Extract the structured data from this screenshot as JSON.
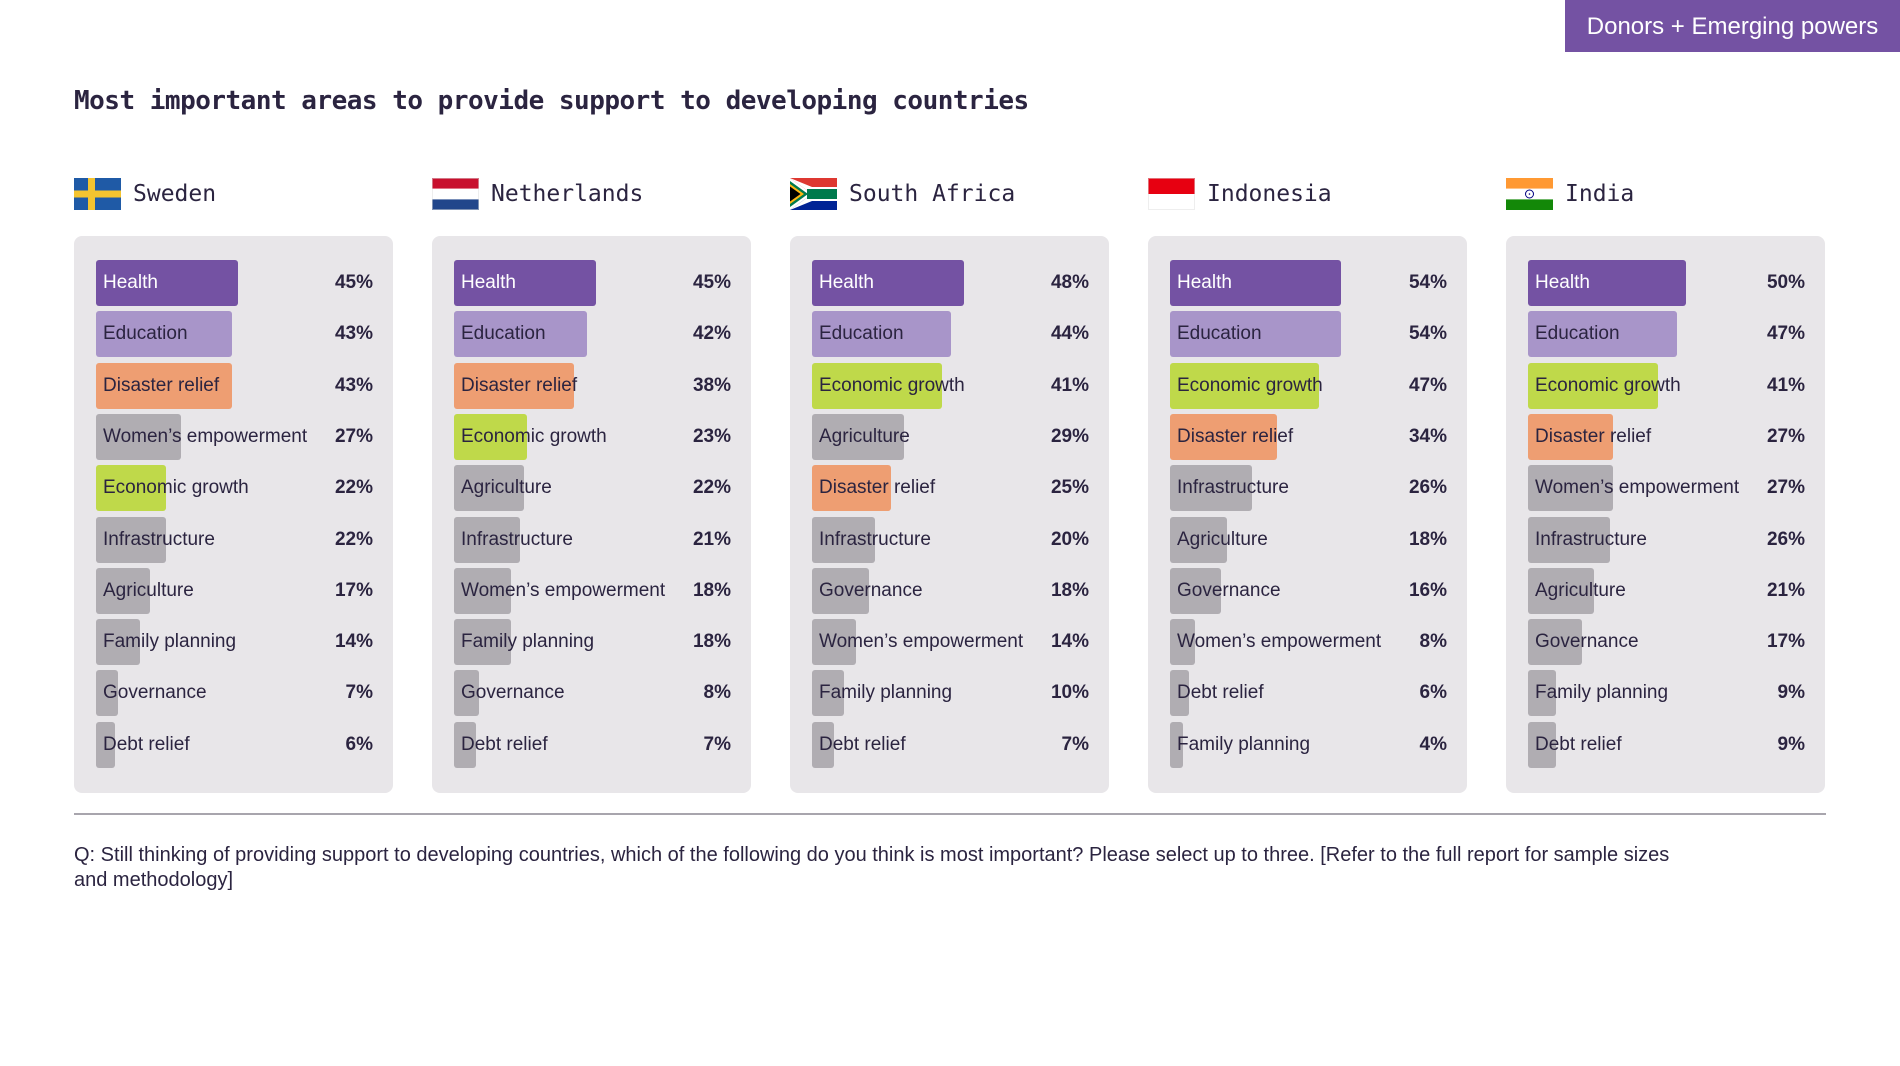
{
  "badge": "Donors + Emerging powers",
  "title": "Most important areas to provide support to developing countries",
  "question": "Q: Still thinking of providing support to developing countries, which of the following do you think is most important? Please select up to three. [Refer to the full report for sample sizes and methodology]",
  "colors": {
    "Health": "#7452a3",
    "Education": "#a895c9",
    "Disaster relief": "#ee9e72",
    "Economic growth": "#bfd94a",
    "other": "#b0adb2"
  },
  "chart_data": [
    {
      "type": "bar",
      "orientation": "horizontal",
      "title": "Sweden",
      "flag": "sweden-flag",
      "xlim": [
        0,
        100
      ],
      "categories": [
        "Health",
        "Education",
        "Disaster relief",
        "Women’s empowerment",
        "Economic growth",
        "Infrastructure",
        "Agriculture",
        "Family planning",
        "Governance",
        "Debt relief"
      ],
      "values": [
        45,
        43,
        43,
        27,
        22,
        22,
        17,
        14,
        7,
        6
      ],
      "value_labels": [
        "45%",
        "43%",
        "43%",
        "27%",
        "22%",
        "22%",
        "17%",
        "14%",
        "7%",
        "6%"
      ]
    },
    {
      "type": "bar",
      "orientation": "horizontal",
      "title": "Netherlands",
      "flag": "netherlands-flag",
      "xlim": [
        0,
        100
      ],
      "categories": [
        "Health",
        "Education",
        "Disaster relief",
        "Economic growth",
        "Agriculture",
        "Infrastructure",
        "Women’s empowerment",
        "Family planning",
        "Governance",
        "Debt relief"
      ],
      "values": [
        45,
        42,
        38,
        23,
        22,
        21,
        18,
        18,
        8,
        7
      ],
      "value_labels": [
        "45%",
        "42%",
        "38%",
        "23%",
        "22%",
        "21%",
        "18%",
        "18%",
        "8%",
        "7%"
      ]
    },
    {
      "type": "bar",
      "orientation": "horizontal",
      "title": "South Africa",
      "flag": "south-africa-flag",
      "xlim": [
        0,
        100
      ],
      "categories": [
        "Health",
        "Education",
        "Economic growth",
        "Agriculture",
        "Disaster relief",
        "Infrastructure",
        "Governance",
        "Women’s empowerment",
        "Family planning",
        "Debt relief"
      ],
      "values": [
        48,
        44,
        41,
        29,
        25,
        20,
        18,
        14,
        10,
        7
      ],
      "value_labels": [
        "48%",
        "44%",
        "41%",
        "29%",
        "25%",
        "20%",
        "18%",
        "14%",
        "10%",
        "7%"
      ]
    },
    {
      "type": "bar",
      "orientation": "horizontal",
      "title": "Indonesia",
      "flag": "indonesia-flag",
      "xlim": [
        0,
        100
      ],
      "categories": [
        "Health",
        "Education",
        "Economic growth",
        "Disaster relief",
        "Infrastructure",
        "Agriculture",
        "Governance",
        "Women’s empowerment",
        "Debt relief",
        "Family planning"
      ],
      "values": [
        54,
        54,
        47,
        34,
        26,
        18,
        16,
        8,
        6,
        4
      ],
      "value_labels": [
        "54%",
        "54%",
        "47%",
        "34%",
        "26%",
        "18%",
        "16%",
        "8%",
        "6%",
        "4%"
      ]
    },
    {
      "type": "bar",
      "orientation": "horizontal",
      "title": "India",
      "flag": "india-flag",
      "xlim": [
        0,
        100
      ],
      "categories": [
        "Health",
        "Education",
        "Economic growth",
        "Disaster relief",
        "Women’s empowerment",
        "Infrastructure",
        "Agriculture",
        "Governance",
        "Family planning",
        "Debt relief"
      ],
      "values": [
        50,
        47,
        41,
        27,
        27,
        26,
        21,
        17,
        9,
        9
      ],
      "value_labels": [
        "50%",
        "47%",
        "41%",
        "27%",
        "27%",
        "26%",
        "21%",
        "17%",
        "9%",
        "9%"
      ]
    }
  ]
}
